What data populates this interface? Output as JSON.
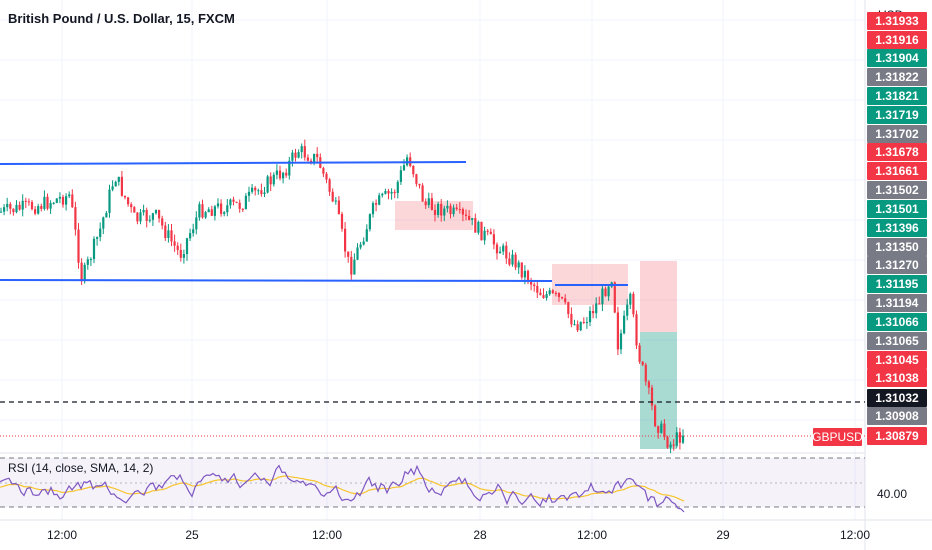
{
  "header": {
    "title": "British Pound / U.S. Dollar, 15, FXCM",
    "currency": "USD"
  },
  "price_scale": [
    {
      "text": "1.31933",
      "color": "#f23645"
    },
    {
      "text": "1.31916",
      "color": "#f23645"
    },
    {
      "text": "1.31904",
      "color": "#089981"
    },
    {
      "text": "1.31822",
      "color": "#787b86"
    },
    {
      "text": "1.31821",
      "color": "#089981"
    },
    {
      "text": "1.31719",
      "color": "#089981"
    },
    {
      "text": "1.31702",
      "color": "#787b86"
    },
    {
      "text": "1.31678",
      "color": "#f23645"
    },
    {
      "text": "1.31661",
      "color": "#f23645"
    },
    {
      "text": "1.31502",
      "color": "#787b86"
    },
    {
      "text": "1.31501",
      "color": "#089981"
    },
    {
      "text": "1.31396",
      "color": "#089981"
    },
    {
      "text": "1.31350",
      "color": "#787b86"
    },
    {
      "text": "1.31270",
      "color": "#787b86"
    },
    {
      "text": "1.31195",
      "color": "#089981"
    },
    {
      "text": "1.31194",
      "color": "#787b86"
    },
    {
      "text": "1.31066",
      "color": "#089981"
    },
    {
      "text": "1.31065",
      "color": "#787b86"
    },
    {
      "text": "1.31045",
      "color": "#f23645"
    },
    {
      "text": "1.31038",
      "color": "#f23645"
    },
    {
      "text": "1.31032",
      "color": "#131722"
    },
    {
      "text": "1.30908",
      "color": "#787b86"
    },
    {
      "text": "1.30879",
      "color": "#f23645"
    }
  ],
  "symbol_label": "GBPUSD",
  "rsi": {
    "title": "RSI (14, close, SMA, 14, 2)",
    "level_label": "40.00"
  },
  "time_axis": [
    "12:00",
    "25",
    "12:00",
    "28",
    "12:00",
    "29",
    "12:00"
  ],
  "colors": {
    "up": "#089981",
    "down": "#f23645",
    "trendline": "#2962ff",
    "rsi_line": "#7e57c2",
    "rsi_ma": "#f7c52c"
  }
}
